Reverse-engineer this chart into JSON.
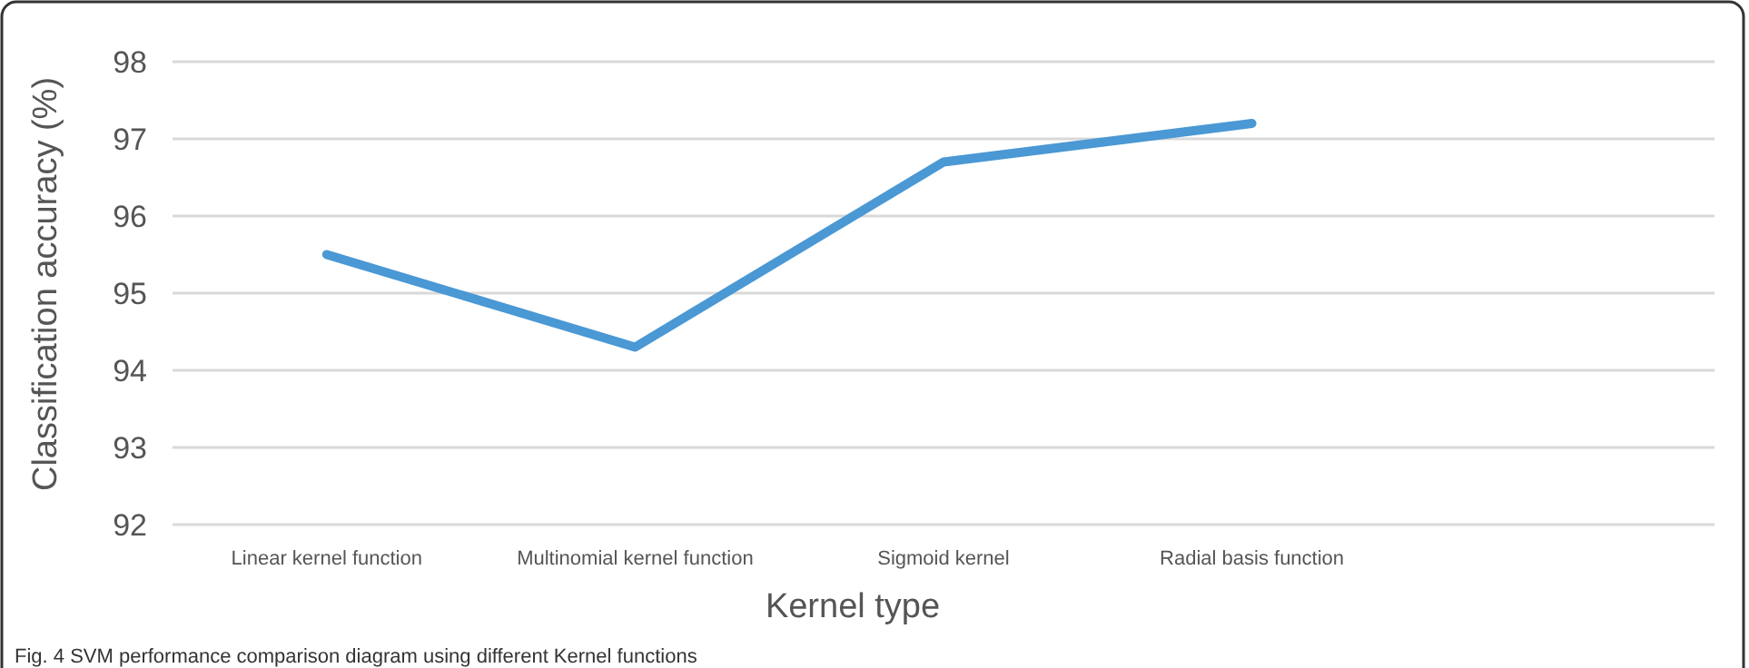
{
  "chart_data": {
    "type": "line",
    "xlabel": "Kernel type",
    "ylabel": "Classification accuracy (%)",
    "categories": [
      "Linear kernel function",
      "Multinomial kernel function",
      "Sigmoid kernel",
      "Radial basis function",
      null
    ],
    "series": [
      {
        "color": "#4a98d4",
        "values": [
          95.5,
          94.3,
          96.7,
          97.2,
          null
        ]
      }
    ],
    "ylim": [
      92,
      98
    ],
    "yticks": [
      92,
      93,
      94,
      95,
      96,
      97,
      98
    ],
    "grid": "y",
    "marker": "none",
    "line_style": "solid",
    "annotations": [
      "Fig. 4 SVM performance comparison diagram using different Kernel functions"
    ]
  }
}
